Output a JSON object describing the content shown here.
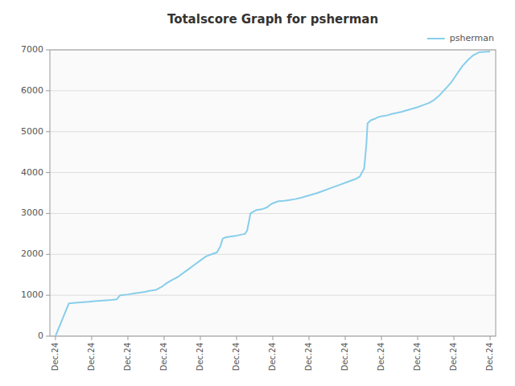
{
  "chart_data": {
    "type": "line",
    "title": "Totalscore Graph for psherman",
    "x": [
      0,
      1.2,
      2.0,
      2.5,
      3.0,
      3.5,
      4.0,
      4.5,
      5.0,
      5.5,
      5.8,
      6.5,
      7.0,
      7.5,
      8.0,
      8.3,
      9.0,
      9.5,
      10.0,
      10.5,
      11.0,
      11.5,
      12.0,
      12.5,
      13.0,
      13.5,
      13.8,
      14.0,
      14.5,
      14.8,
      15.0,
      15.3,
      15.8,
      16.3,
      16.8,
      17.0,
      17.2,
      17.5,
      17.8,
      18.0,
      18.5,
      19.0,
      19.2,
      19.5,
      19.8,
      20.0,
      20.5,
      21.0,
      21.5,
      22.0,
      22.5,
      23.0,
      23.5,
      24.0,
      24.5,
      25.0,
      25.5,
      26.0,
      26.5,
      27.0,
      27.3,
      27.5,
      27.7,
      27.9,
      28.0,
      28.3,
      28.7,
      29.0,
      29.3,
      29.8,
      30.0,
      30.5,
      31.0,
      31.5,
      32.0,
      32.5,
      33.0,
      33.5,
      34.0,
      34.5,
      35.0,
      35.5,
      36.0,
      36.5,
      37.0,
      37.5,
      38.0,
      39.0
    ],
    "series": [
      {
        "name": "psherman",
        "color": "#87CEEB",
        "values": [
          0,
          800,
          820,
          830,
          840,
          855,
          865,
          875,
          885,
          900,
          1000,
          1020,
          1040,
          1060,
          1080,
          1100,
          1130,
          1200,
          1300,
          1380,
          1450,
          1550,
          1650,
          1750,
          1850,
          1950,
          1980,
          2000,
          2050,
          2200,
          2380,
          2420,
          2440,
          2460,
          2490,
          2500,
          2580,
          3000,
          3050,
          3080,
          3100,
          3150,
          3200,
          3250,
          3280,
          3300,
          3310,
          3330,
          3350,
          3380,
          3420,
          3460,
          3500,
          3550,
          3600,
          3650,
          3700,
          3750,
          3800,
          3850,
          3900,
          4000,
          4100,
          4700,
          5200,
          5280,
          5320,
          5360,
          5380,
          5400,
          5420,
          5450,
          5480,
          5520,
          5560,
          5600,
          5650,
          5700,
          5780,
          5900,
          6050,
          6200,
          6400,
          6600,
          6750,
          6870,
          6940,
          6960
        ]
      }
    ],
    "xlim": [
      -0.5,
      39.5
    ],
    "ylim": [
      0,
      7000
    ],
    "xticks": [
      {
        "value": 0,
        "label": "Dec.24"
      },
      {
        "value": 3.25,
        "label": "Dec.24"
      },
      {
        "value": 6.5,
        "label": "Dec.24"
      },
      {
        "value": 9.75,
        "label": "Dec.24"
      },
      {
        "value": 13,
        "label": "Dec.24"
      },
      {
        "value": 16.25,
        "label": "Dec.24"
      },
      {
        "value": 19.5,
        "label": "Dec.24"
      },
      {
        "value": 22.75,
        "label": "Dec.24"
      },
      {
        "value": 26,
        "label": "Dec.24"
      },
      {
        "value": 29.25,
        "label": "Dec.24"
      },
      {
        "value": 32.5,
        "label": "Dec.24"
      },
      {
        "value": 35.75,
        "label": "Dec.24"
      },
      {
        "value": 39,
        "label": "Dec.24"
      }
    ],
    "yticks": [
      0,
      1000,
      2000,
      3000,
      4000,
      5000,
      6000,
      7000
    ],
    "grid": true,
    "legend": "top-right"
  }
}
